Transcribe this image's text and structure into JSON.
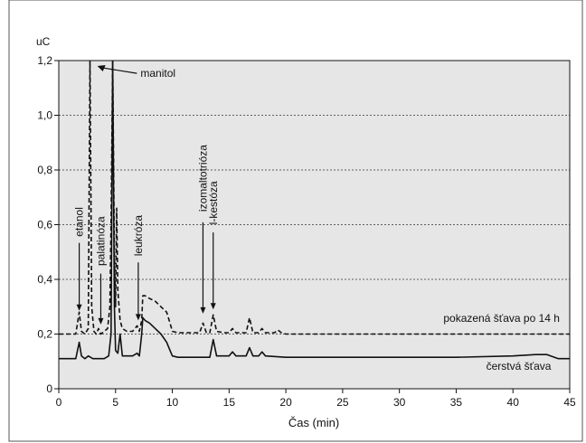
{
  "chart_data": {
    "type": "line",
    "title": "",
    "xlabel": "Čas (min)",
    "ylabel": "uC",
    "xlim": [
      0,
      45
    ],
    "ylim": [
      0,
      1.2
    ],
    "x_ticks": [
      0,
      5,
      10,
      15,
      20,
      25,
      30,
      35,
      40,
      45
    ],
    "x_tick_labels": [
      "0",
      "5",
      "10",
      "15",
      "20",
      "25",
      "30",
      "35",
      "40",
      "45"
    ],
    "y_ticks": [
      0,
      0.2,
      0.4,
      0.6,
      0.8,
      1.0,
      1.2
    ],
    "y_tick_labels": [
      "0",
      "0,2",
      "0,4",
      "0,6",
      "0,8",
      "1,0",
      "1,2"
    ],
    "grid": "horizontal-dashed",
    "background": "#e6e6e6",
    "series": [
      {
        "name": "čerstvá šťava",
        "style": "solid",
        "color": "#111111",
        "x": [
          0,
          1.5,
          1.8,
          2.0,
          2.3,
          2.6,
          3.0,
          4.0,
          4.4,
          4.6,
          4.75,
          4.9,
          5.0,
          5.2,
          5.4,
          5.6,
          6.0,
          6.5,
          6.9,
          7.1,
          7.3,
          7.4,
          7.6,
          8.0,
          8.5,
          9.0,
          9.5,
          9.8,
          10.0,
          10.5,
          12.0,
          13.3,
          13.6,
          13.9,
          14.5,
          15.0,
          15.3,
          15.6,
          16.5,
          16.8,
          17.1,
          17.6,
          17.9,
          18.2,
          20.0,
          25.0,
          30.0,
          35.0,
          40.0,
          42.0,
          43.0,
          44.0,
          45.0
        ],
        "y": [
          0.11,
          0.11,
          0.17,
          0.12,
          0.11,
          0.12,
          0.11,
          0.11,
          0.12,
          0.2,
          1.2,
          0.3,
          0.14,
          0.13,
          0.2,
          0.12,
          0.12,
          0.12,
          0.13,
          0.12,
          0.2,
          0.26,
          0.25,
          0.24,
          0.22,
          0.2,
          0.17,
          0.14,
          0.12,
          0.115,
          0.115,
          0.115,
          0.18,
          0.12,
          0.12,
          0.12,
          0.135,
          0.12,
          0.12,
          0.15,
          0.12,
          0.12,
          0.135,
          0.12,
          0.115,
          0.115,
          0.115,
          0.115,
          0.12,
          0.125,
          0.125,
          0.11,
          0.11
        ]
      },
      {
        "name": "pokazená šťava po 14 h",
        "style": "dashed",
        "color": "#111111",
        "x": [
          0,
          1.5,
          1.8,
          2.0,
          2.3,
          2.6,
          2.75,
          2.9,
          3.1,
          3.3,
          3.5,
          3.7,
          4.0,
          4.3,
          4.5,
          4.6,
          4.75,
          4.9,
          5.0,
          5.1,
          5.2,
          5.4,
          5.6,
          6.0,
          6.5,
          6.9,
          7.1,
          7.3,
          7.4,
          7.6,
          8.0,
          8.5,
          9.0,
          9.5,
          9.8,
          10.0,
          10.5,
          11.5,
          12.4,
          12.7,
          13.0,
          13.3,
          13.6,
          13.9,
          14.5,
          15.0,
          15.3,
          15.6,
          16.5,
          16.8,
          17.1,
          17.6,
          17.9,
          18.2,
          19.0,
          19.3,
          19.6,
          20.0,
          25.0,
          30.0,
          35.0,
          40.0,
          42.0,
          43.0,
          45.0
        ],
        "y": [
          0.2,
          0.2,
          0.28,
          0.21,
          0.2,
          0.22,
          1.2,
          0.3,
          0.21,
          0.2,
          0.22,
          0.2,
          0.21,
          0.22,
          0.3,
          0.6,
          1.2,
          0.5,
          0.3,
          0.66,
          0.36,
          0.25,
          0.22,
          0.21,
          0.21,
          0.23,
          0.21,
          0.25,
          0.34,
          0.34,
          0.33,
          0.32,
          0.3,
          0.28,
          0.24,
          0.21,
          0.205,
          0.205,
          0.205,
          0.24,
          0.205,
          0.205,
          0.27,
          0.21,
          0.205,
          0.205,
          0.22,
          0.205,
          0.205,
          0.26,
          0.205,
          0.205,
          0.22,
          0.205,
          0.205,
          0.215,
          0.205,
          0.2,
          0.2,
          0.2,
          0.2,
          0.2,
          0.2,
          0.2,
          0.2
        ]
      }
    ],
    "annotations": [
      {
        "text": "etanol",
        "x": 1.8,
        "y_top": 0.61,
        "y_arrow": 0.285
      },
      {
        "text": "palatinóza",
        "x": 3.7,
        "y_top": 0.54,
        "y_arrow": 0.235
      },
      {
        "text": "leukróza",
        "x": 7.0,
        "y_top": 0.56,
        "y_arrow": 0.25
      },
      {
        "text": "izomaltotrióza",
        "x": 12.7,
        "y_top": 0.77,
        "y_arrow": 0.275
      },
      {
        "text": "l-kestóza",
        "x": 13.6,
        "y_top": 0.68,
        "y_arrow": 0.29
      },
      {
        "text": "manitol",
        "x": 7.2,
        "y": 1.14,
        "arrow_to_x": 3.4,
        "arrow_to_y": 1.18,
        "style": "horizontal"
      }
    ],
    "series_labels": [
      {
        "text": "pokazená šťava po 14 h",
        "x": 39.0,
        "y": 0.245
      },
      {
        "text": "čerstvá šťava",
        "x": 40.5,
        "y": 0.07
      }
    ]
  }
}
